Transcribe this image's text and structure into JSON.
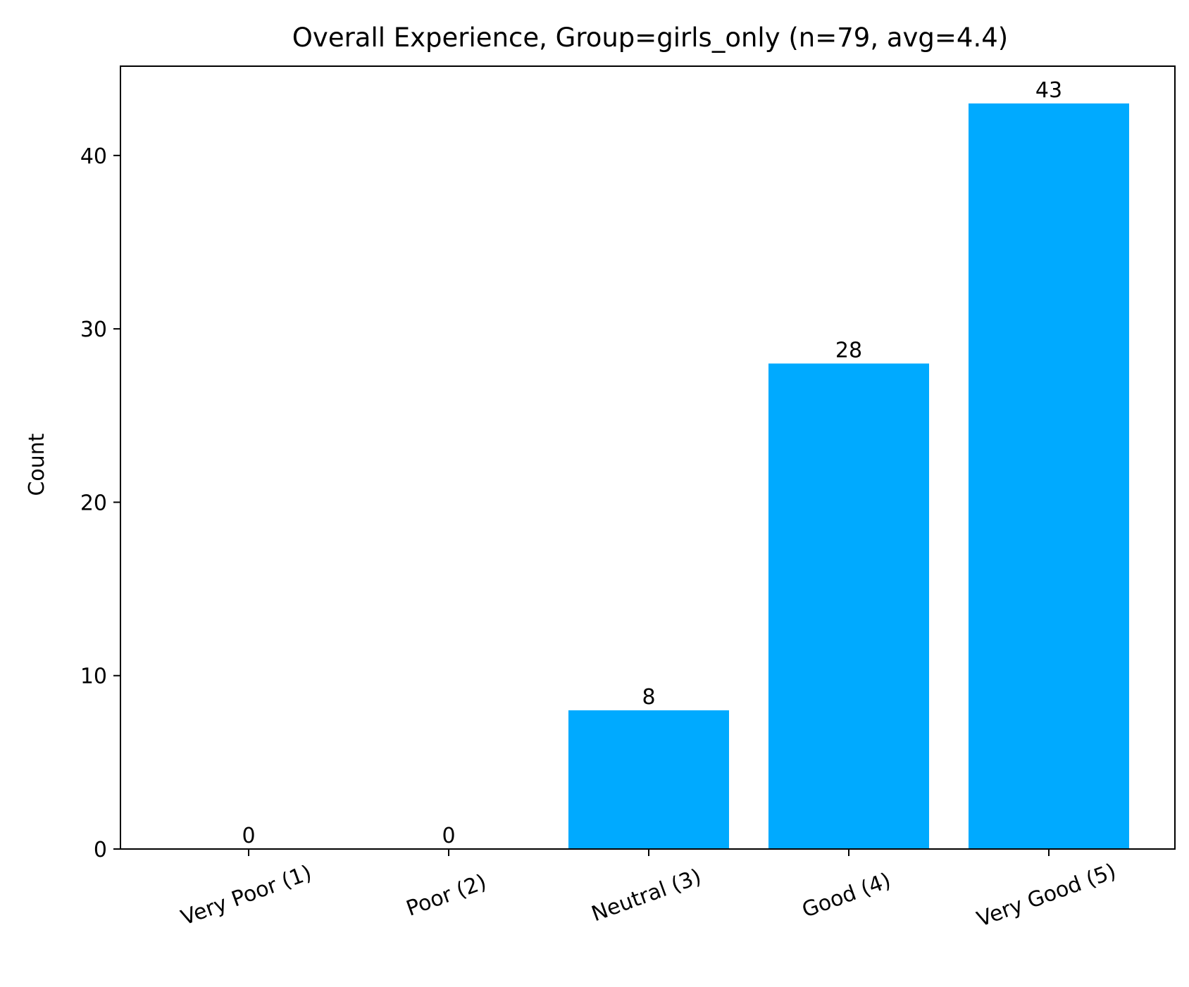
{
  "chart_data": {
    "type": "bar",
    "title": "Overall Experience, Group=girls_only (n=79, avg=4.4)",
    "xlabel": "",
    "ylabel": "Count",
    "categories": [
      "Very Poor (1)",
      "Poor (2)",
      "Neutral (3)",
      "Good (4)",
      "Very Good (5)"
    ],
    "values": [
      0,
      0,
      8,
      28,
      43
    ],
    "data_labels": [
      "0",
      "0",
      "8",
      "28",
      "43"
    ],
    "ylim": [
      0,
      45.15
    ],
    "yticks": [
      0,
      10,
      20,
      30,
      40
    ],
    "ytick_labels": [
      "0",
      "10",
      "20",
      "30",
      "40"
    ],
    "grid": false,
    "legend": "none",
    "bar_color": "#00aaff",
    "axis_color": "#000000"
  }
}
